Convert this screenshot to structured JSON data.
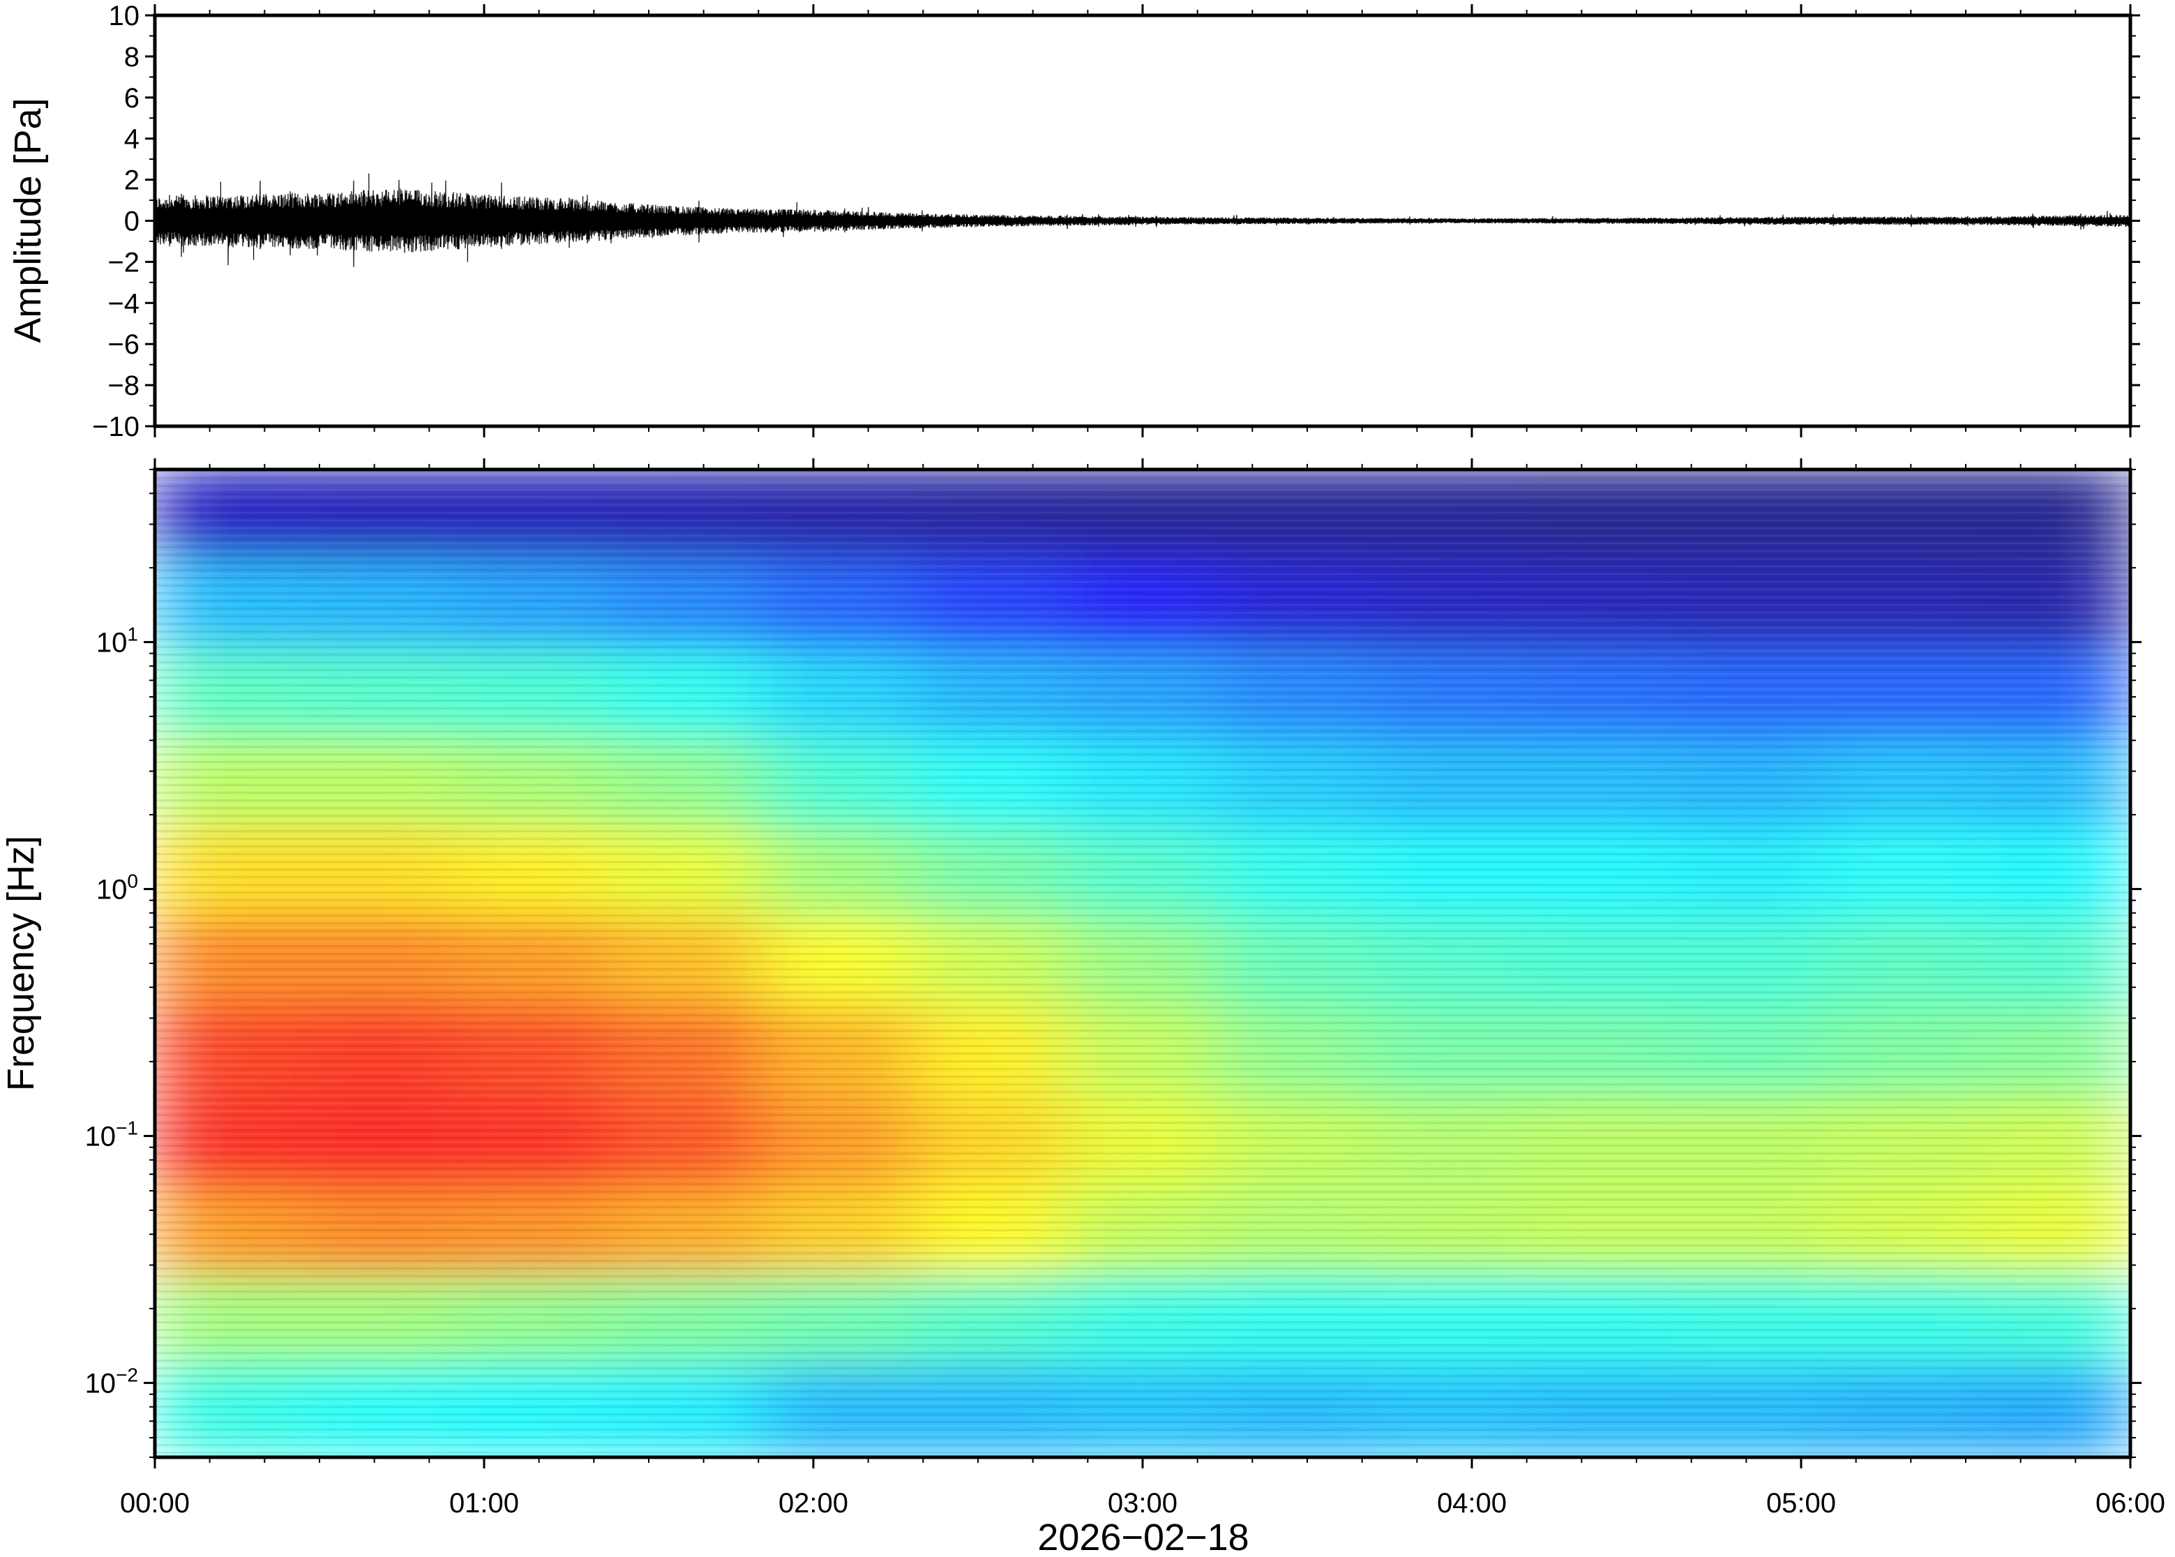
{
  "chart_data": [
    {
      "type": "line",
      "title": "",
      "ylabel": "Amplitude [Pa]",
      "xlabel": "",
      "ylim": [
        -10,
        10
      ],
      "y_ticks": [
        10,
        8,
        6,
        4,
        2,
        0,
        -2,
        -4,
        -6,
        -8,
        -10
      ],
      "y_tick_labels": [
        "10",
        "8",
        "6",
        "4",
        "2",
        "0",
        "−2",
        "−4",
        "−6",
        "−8",
        "−10"
      ],
      "x_range_hours": [
        0,
        6
      ],
      "grid": false,
      "series": [
        {
          "color": "#000000",
          "envelope_time_h": [
            0.0,
            0.25,
            0.5,
            0.75,
            1.0,
            1.25,
            1.5,
            1.75,
            2.0,
            2.25,
            2.5,
            3.0,
            3.5,
            4.0,
            4.5,
            5.0,
            5.5,
            6.0
          ],
          "envelope_amplitude_pa": [
            1.2,
            1.3,
            1.4,
            1.6,
            1.3,
            1.1,
            0.8,
            0.6,
            0.55,
            0.4,
            0.3,
            0.2,
            0.15,
            0.12,
            0.15,
            0.2,
            0.2,
            0.3
          ],
          "peak_excursions_pa": [
            1.9,
            -1.9,
            2.3,
            -2.0,
            1.2,
            0.9
          ]
        }
      ]
    },
    {
      "type": "heatmap",
      "title": "",
      "ylabel": "Frequency [Hz]",
      "xlabel": "2026−02−18",
      "y_scale": "log",
      "ylim": [
        0.005,
        50
      ],
      "y_tick_values": [
        10,
        1,
        0.1,
        0.01
      ],
      "y_tick_labels": [
        {
          "base": "10",
          "exp": "1"
        },
        {
          "base": "10",
          "exp": "0"
        },
        {
          "base": "10",
          "exp": "−1"
        },
        {
          "base": "10",
          "exp": "−2"
        }
      ],
      "x_tick_labels": [
        "00:00",
        "01:00",
        "02:00",
        "03:00",
        "04:00",
        "05:00",
        "06:00"
      ],
      "x_range_hours": [
        0,
        6
      ],
      "colormap": "jet",
      "grid": false,
      "relative_power_rows_high_to_low_freq": [
        [
          0.06,
          0.05,
          0.05,
          0.04,
          0.03,
          0.02,
          0.01,
          0.01,
          0.01,
          0.0,
          0.0,
          0.0,
          0.0
        ],
        [
          0.3,
          0.29,
          0.27,
          0.24,
          0.2,
          0.16,
          0.12,
          0.08,
          0.06,
          0.05,
          0.04,
          0.04,
          0.03
        ],
        [
          0.44,
          0.43,
          0.42,
          0.39,
          0.33,
          0.29,
          0.27,
          0.24,
          0.22,
          0.21,
          0.2,
          0.2,
          0.2
        ],
        [
          0.55,
          0.55,
          0.53,
          0.5,
          0.42,
          0.38,
          0.35,
          0.32,
          0.3,
          0.3,
          0.29,
          0.31,
          0.3
        ],
        [
          0.66,
          0.66,
          0.64,
          0.6,
          0.52,
          0.47,
          0.43,
          0.39,
          0.37,
          0.37,
          0.36,
          0.38,
          0.37
        ],
        [
          0.76,
          0.76,
          0.74,
          0.7,
          0.62,
          0.57,
          0.51,
          0.45,
          0.43,
          0.42,
          0.42,
          0.44,
          0.43
        ],
        [
          0.84,
          0.85,
          0.83,
          0.79,
          0.71,
          0.64,
          0.56,
          0.5,
          0.47,
          0.47,
          0.46,
          0.48,
          0.49
        ],
        [
          0.86,
          0.87,
          0.86,
          0.82,
          0.74,
          0.67,
          0.6,
          0.56,
          0.54,
          0.55,
          0.55,
          0.56,
          0.57
        ],
        [
          0.74,
          0.76,
          0.75,
          0.72,
          0.68,
          0.63,
          0.56,
          0.54,
          0.55,
          0.56,
          0.56,
          0.58,
          0.6
        ],
        [
          0.52,
          0.52,
          0.5,
          0.48,
          0.46,
          0.43,
          0.4,
          0.39,
          0.39,
          0.39,
          0.4,
          0.4,
          0.41
        ],
        [
          0.4,
          0.38,
          0.37,
          0.36,
          0.3,
          0.3,
          0.31,
          0.3,
          0.31,
          0.3,
          0.3,
          0.29,
          0.28
        ]
      ]
    }
  ]
}
